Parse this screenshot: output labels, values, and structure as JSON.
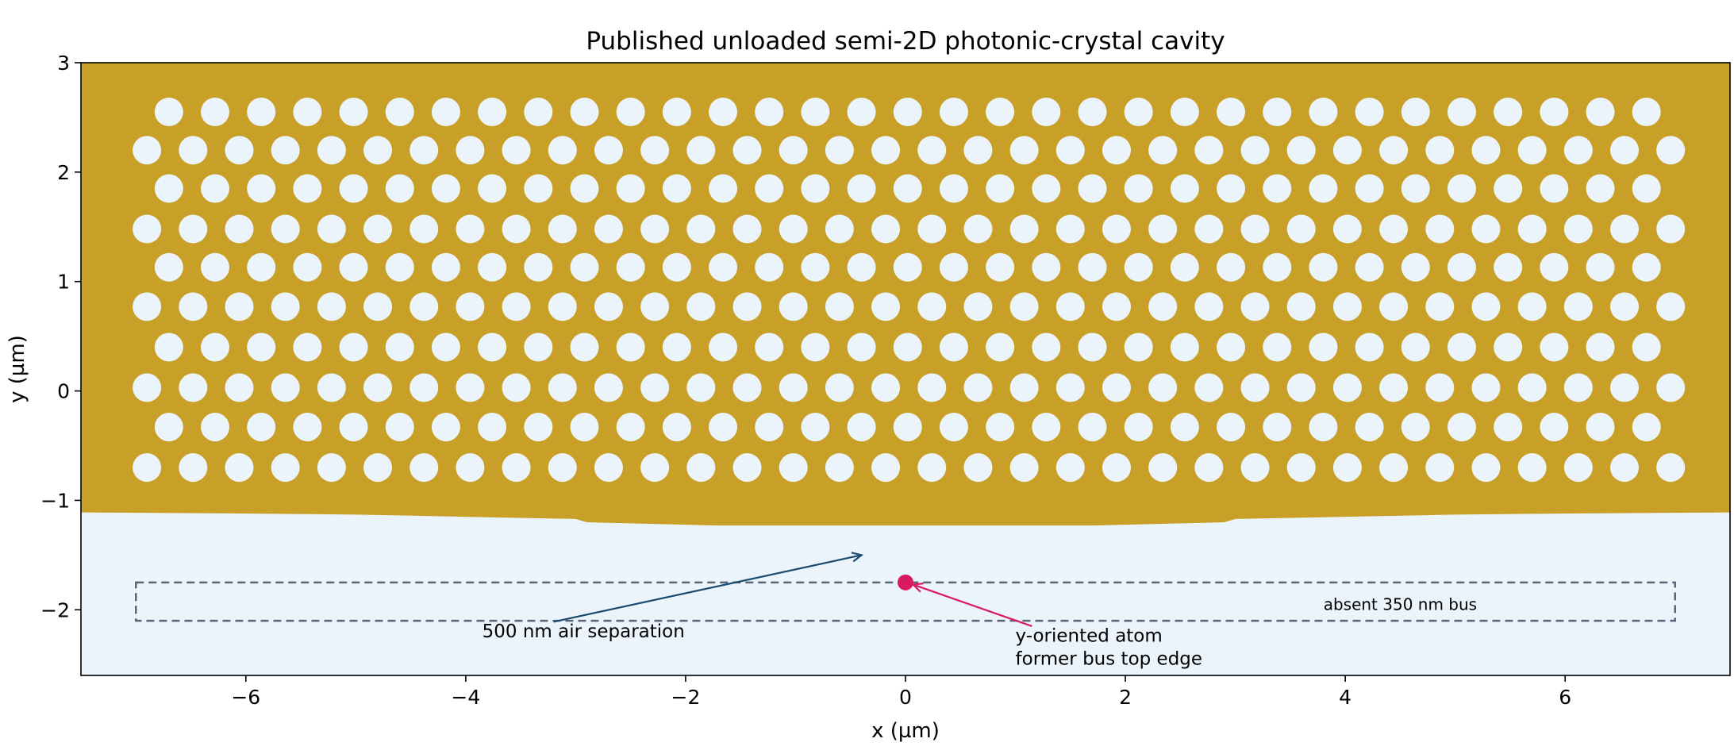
{
  "chart_data": {
    "type": "heatmap",
    "title": "Published unloaded semi-2D photonic-crystal cavity",
    "xlabel": "x (µm)",
    "ylabel": "y (µm)",
    "xlim": [
      -7.5,
      7.5
    ],
    "ylim": [
      -2.6,
      3.0
    ],
    "xticks": [
      -6,
      -4,
      -2,
      0,
      2,
      4,
      6
    ],
    "xtick_labels": [
      "−6",
      "−4",
      "−2",
      "0",
      "2",
      "4",
      "6"
    ],
    "yticks": [
      -2,
      -1,
      0,
      1,
      2,
      3
    ],
    "ytick_labels": [
      "−2",
      "−1",
      "0",
      "1",
      "2",
      "3"
    ],
    "grid": false,
    "colors": {
      "slab": "#c8a028",
      "air": "#ebf3fb",
      "bus_outline": "#5a6478",
      "separation_annotation": "#1a4a6e",
      "atom": "#d81b60",
      "atom_annotation": "#8b1050"
    },
    "lattice": {
      "rows_y": [
        2.55,
        2.2,
        1.85,
        1.48,
        1.13,
        0.77,
        0.4,
        0.03,
        -0.33,
        -0.7
      ],
      "odd_row_x_start": -6.7,
      "even_row_x_start": -6.9,
      "pitch_x": 0.42,
      "odd_row_count": 33,
      "even_row_count": 34,
      "hole_radius": 0.13
    },
    "slab_bottom_edge": {
      "x": [
        -7.5,
        -6,
        -5,
        -4,
        -3,
        -2.9,
        -1.7,
        1.7,
        2.9,
        3,
        4,
        5,
        6,
        7.5
      ],
      "y": [
        -1.11,
        -1.12,
        -1.13,
        -1.15,
        -1.17,
        -1.2,
        -1.23,
        -1.23,
        -1.2,
        -1.17,
        -1.15,
        -1.13,
        -1.12,
        -1.11
      ]
    },
    "bus": {
      "x": [
        -7.0,
        7.0
      ],
      "y": [
        -2.1,
        -1.75
      ],
      "label": "absent 350 nm bus",
      "label_pos": [
        4.5,
        -2.0
      ]
    },
    "atom": {
      "x": 0.0,
      "y": -1.75
    },
    "annotations": [
      {
        "id": "separation",
        "text": [
          "500 nm air separation"
        ],
        "text_pos": [
          -3.85,
          -2.25
        ],
        "arrow_from": [
          -3.2,
          -2.11
        ],
        "arrow_to": [
          -0.4,
          -1.5
        ]
      },
      {
        "id": "atom",
        "text": [
          "y-oriented atom",
          "former bus top edge"
        ],
        "text_pos": [
          1.0,
          -2.29
        ],
        "arrow_from": [
          1.15,
          -2.15
        ],
        "arrow_to": [
          0.07,
          -1.77
        ]
      }
    ]
  }
}
